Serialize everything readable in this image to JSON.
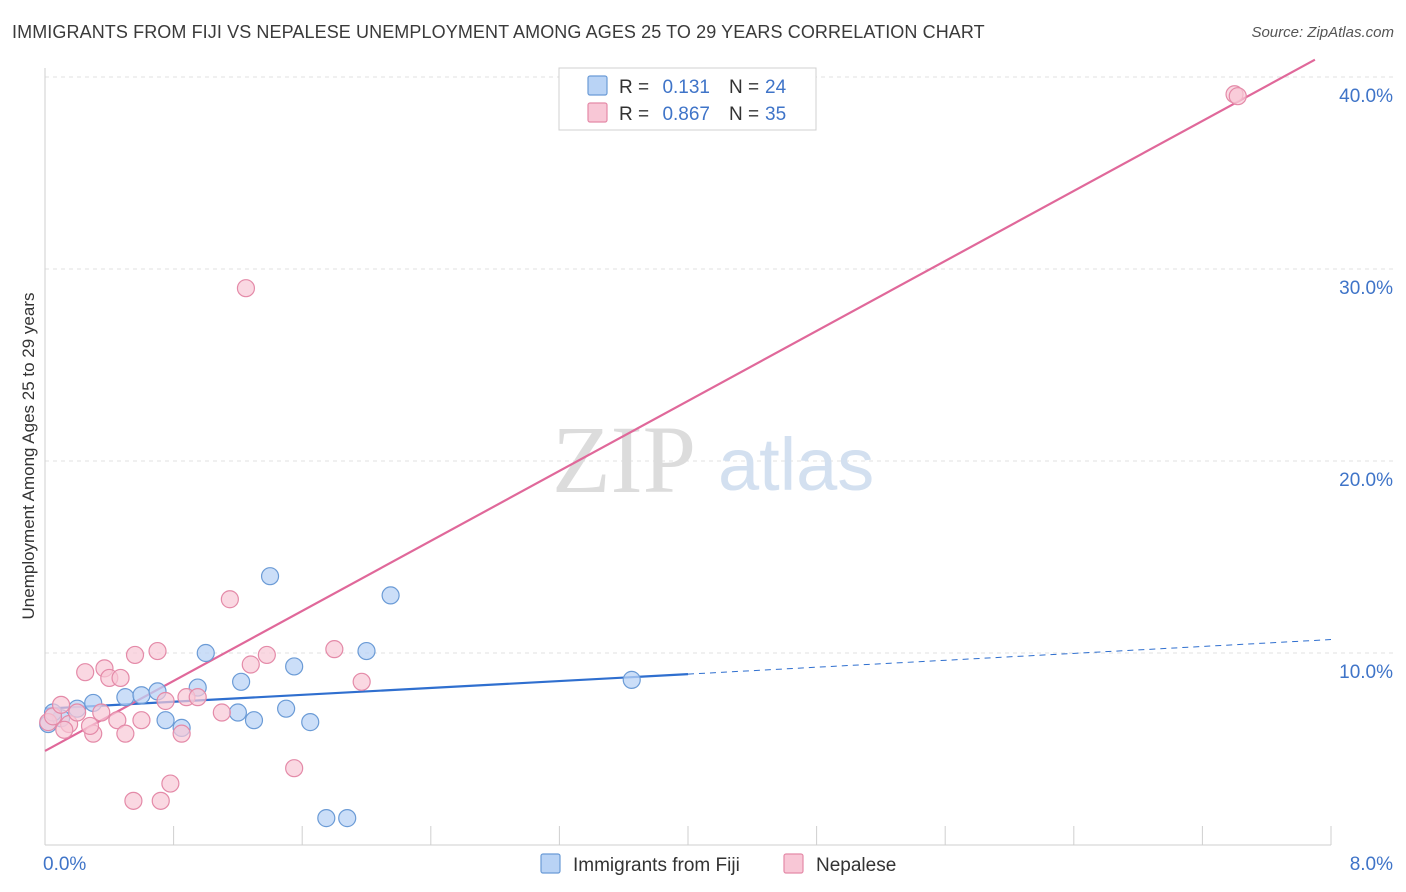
{
  "title": "IMMIGRANTS FROM FIJI VS NEPALESE UNEMPLOYMENT AMONG AGES 25 TO 29 YEARS CORRELATION CHART",
  "source": "Source: ZipAtlas.com",
  "watermark": {
    "zip": "ZIP",
    "atlas": "atlas"
  },
  "colors": {
    "fiji_fill": "#b9d3f5",
    "fiji_stroke": "#6b9bd6",
    "fiji_line": "#2f6fcf",
    "nepal_fill": "#f8c7d6",
    "nepal_stroke": "#e48aa8",
    "nepal_line": "#e0689a",
    "tick_text": "#3f74c8",
    "grid": "#e2e2e2"
  },
  "legend": {
    "items": [
      {
        "r_label": "R =",
        "r_value": "0.131",
        "n_label": "N =",
        "n_value": "24"
      },
      {
        "r_label": "R =",
        "r_value": "0.867",
        "n_label": "N =",
        "n_value": "35"
      }
    ]
  },
  "chart_data": {
    "type": "scatter",
    "title": "IMMIGRANTS FROM FIJI VS NEPALESE UNEMPLOYMENT AMONG AGES 25 TO 29 YEARS CORRELATION CHART",
    "xlabel": "",
    "ylabel": "Unemployment Among Ages 25 to 29 years",
    "xlim": [
      0,
      8
    ],
    "ylim": [
      0,
      41
    ],
    "x_ticks": [
      0,
      0.8,
      1.6,
      2.4,
      3.2,
      4.0,
      4.8,
      5.6,
      6.4,
      7.2,
      8.0
    ],
    "x_tick_labels": {
      "0": "0.0%",
      "8": "8.0%"
    },
    "y_ticks": [
      10,
      20,
      30,
      40
    ],
    "y_tick_labels": [
      "10.0%",
      "20.0%",
      "30.0%",
      "40.0%"
    ],
    "grid": true,
    "legend_position": "top-center",
    "series": [
      {
        "name": "Immigrants from Fiji",
        "points": [
          [
            0.02,
            6.3
          ],
          [
            0.1,
            6.6
          ],
          [
            0.2,
            7.1
          ],
          [
            0.3,
            7.4
          ],
          [
            0.5,
            7.7
          ],
          [
            0.6,
            7.8
          ],
          [
            0.7,
            8.0
          ],
          [
            0.75,
            6.5
          ],
          [
            0.85,
            6.1
          ],
          [
            0.95,
            8.2
          ],
          [
            1.0,
            10.0
          ],
          [
            1.2,
            6.9
          ],
          [
            1.22,
            8.5
          ],
          [
            1.3,
            6.5
          ],
          [
            1.4,
            14.0
          ],
          [
            1.5,
            7.1
          ],
          [
            1.55,
            9.3
          ],
          [
            1.65,
            6.4
          ],
          [
            1.75,
            1.4
          ],
          [
            1.88,
            1.4
          ],
          [
            2.0,
            10.1
          ],
          [
            2.15,
            13.0
          ],
          [
            3.65,
            8.6
          ],
          [
            0.05,
            6.9
          ]
        ],
        "trend": {
          "x0": 0.0,
          "y0": 7.1,
          "x1": 4.0,
          "y1": 8.9,
          "dash_x1": 8.0,
          "dash_y1": 10.7
        }
      },
      {
        "name": "Nepalese",
        "points": [
          [
            0.02,
            6.4
          ],
          [
            0.05,
            6.7
          ],
          [
            0.1,
            7.3
          ],
          [
            0.15,
            6.3
          ],
          [
            0.2,
            6.9
          ],
          [
            0.25,
            9.0
          ],
          [
            0.3,
            5.8
          ],
          [
            0.35,
            6.9
          ],
          [
            0.37,
            9.2
          ],
          [
            0.4,
            8.7
          ],
          [
            0.45,
            6.5
          ],
          [
            0.47,
            8.7
          ],
          [
            0.5,
            5.8
          ],
          [
            0.55,
            2.3
          ],
          [
            0.56,
            9.9
          ],
          [
            0.6,
            6.5
          ],
          [
            0.7,
            10.1
          ],
          [
            0.72,
            2.3
          ],
          [
            0.75,
            7.5
          ],
          [
            0.78,
            3.2
          ],
          [
            0.85,
            5.8
          ],
          [
            0.88,
            7.7
          ],
          [
            0.95,
            7.7
          ],
          [
            1.1,
            6.9
          ],
          [
            1.15,
            12.8
          ],
          [
            1.25,
            29.0
          ],
          [
            1.28,
            9.4
          ],
          [
            1.38,
            9.9
          ],
          [
            1.55,
            4.0
          ],
          [
            1.8,
            10.2
          ],
          [
            1.97,
            8.5
          ],
          [
            7.4,
            39.1
          ],
          [
            7.42,
            39.0
          ],
          [
            0.12,
            6.0
          ],
          [
            0.28,
            6.2
          ]
        ],
        "trend": {
          "x0": 0.0,
          "y0": 4.9,
          "x1": 7.9,
          "y1": 40.9
        }
      }
    ]
  },
  "bottom_legend": {
    "items": [
      {
        "label": "Immigrants from Fiji"
      },
      {
        "label": "Nepalese"
      }
    ]
  }
}
